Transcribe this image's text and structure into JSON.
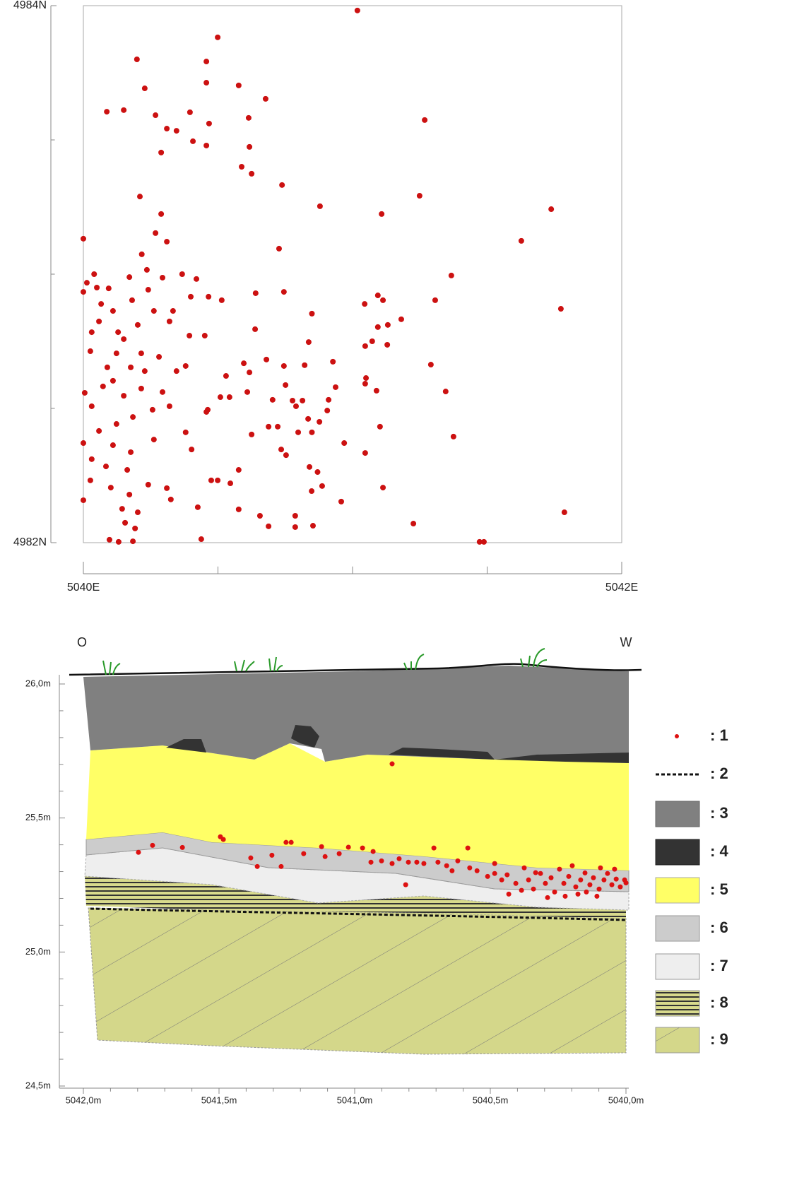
{
  "chart_data": [
    {
      "type": "scatter",
      "color": "#cc1111",
      "xlim": [
        5040,
        5042
      ],
      "ylim": [
        4982,
        4984
      ],
      "xticks": [
        {
          "value": 5040,
          "label": "5040E"
        },
        {
          "value": 5042,
          "label": "5042E"
        }
      ],
      "minor_xticks": [
        5040.5,
        5041,
        5041.5
      ],
      "yticks": [
        {
          "value": 4982,
          "label": "4982N"
        },
        {
          "value": 4984,
          "label": "4984N"
        }
      ],
      "minor_yticks": [
        4982.5,
        4983,
        4983.5
      ],
      "x": [
        5041.018,
        5040.499,
        5040.199,
        5040.457,
        5040.228,
        5040.457,
        5040.577,
        5040.677,
        5040.087,
        5040.15,
        5040.268,
        5040.396,
        5040.614,
        5041.268,
        5040.467,
        5040.31,
        5040.346,
        5040.407,
        5040.457,
        5040.289,
        5040.617,
        5040.588,
        5040.625,
        5040.738,
        5040.21,
        5041.249,
        5040.879,
        5041.738,
        5041.108,
        5040.289,
        5040,
        5040.268,
        5040.31,
        5041.627,
        5040.727,
        5040.217,
        5041.367,
        5041.774,
        5041.307,
        5040.745,
        5040.64,
        5041.045,
        5041.094,
        5041.113,
        5041.181,
        5040.849,
        5041.094,
        5041.131,
        5040.638,
        5041.047,
        5041.073,
        5041.129,
        5040.837,
        5040.927,
        5041.291,
        5040.822,
        5040.745,
        5040.68,
        5040.596,
        5040.617,
        5041.05,
        5041.047,
        5040.937,
        5041.089,
        5041.346,
        5040.609,
        5040.751,
        5040.703,
        5040.777,
        5040.814,
        5040.911,
        5040.79,
        5040.906,
        5040.835,
        5040.877,
        5040.688,
        5040.722,
        5041.102,
        5041.375,
        5040.625,
        5040.798,
        5040.849,
        5040.969,
        5040.735,
        5041.047,
        5040.753,
        5040.84,
        5040.87,
        5040.577,
        5040.499,
        5040.475,
        5040.546,
        5040.848,
        5040.887,
        5041.113,
        5040.958,
        5040.577,
        5040.656,
        5040.688,
        5040.787,
        5040.787,
        5040.853,
        5041.226,
        5041.787,
        5041.472,
        5041.488,
        5040.438,
        5040.097,
        5040.131,
        5040.184,
        5040,
        5040.013,
        5040.04,
        5040.05,
        5040.094,
        5040.066,
        5040.031,
        5040.026,
        5040.058,
        5040.11,
        5040.171,
        5040.236,
        5040.294,
        5040.367,
        5040.42,
        5040.465,
        5040.514,
        5040.399,
        5040.262,
        5040.32,
        5040.202,
        5040.15,
        5040.123,
        5040.215,
        5040.281,
        5040.394,
        5040.451,
        5040.38,
        5040.089,
        5040.176,
        5040.228,
        5040.11,
        5040.073,
        5040.005,
        5040.031,
        5040.15,
        5040.215,
        5040.294,
        5040.32,
        5040.257,
        5040.184,
        5040.123,
        5040.058,
        5040,
        5040.11,
        5040.176,
        5040.262,
        5040.38,
        5040.462,
        5040.402,
        5040.031,
        5040.084,
        5040.163,
        5040.026,
        5040.102,
        5040.171,
        5040,
        5040.144,
        5040.202,
        5040.155,
        5040.192,
        5040.241,
        5040.31,
        5040.325,
        5040.425,
        5040.53,
        5040.509,
        5040.543,
        5040.457,
        5040.333,
        5040.241,
        5040.181,
        5040.129,
        5040.346
      ],
      "y": [
        4983.982,
        4983.882,
        4983.8,
        4983.792,
        4983.692,
        4983.713,
        4983.703,
        4983.653,
        4983.605,
        4983.611,
        4983.592,
        4983.603,
        4983.582,
        4983.574,
        4983.561,
        4983.542,
        4983.534,
        4983.495,
        4983.479,
        4983.453,
        4983.474,
        4983.4,
        4983.374,
        4983.332,
        4983.289,
        4983.292,
        4983.253,
        4983.242,
        4983.224,
        4983.224,
        4983.132,
        4983.153,
        4983.121,
        4983.124,
        4983.095,
        4983.074,
        4982.995,
        4982.871,
        4982.903,
        4982.934,
        4982.929,
        4982.889,
        4982.921,
        4982.903,
        4982.832,
        4982.853,
        4982.803,
        4982.811,
        4982.795,
        4982.732,
        4982.75,
        4982.737,
        4982.747,
        4982.674,
        4982.663,
        4982.661,
        4982.658,
        4982.682,
        4982.668,
        4982.634,
        4982.613,
        4982.592,
        4982.579,
        4982.566,
        4982.563,
        4982.561,
        4982.587,
        4982.532,
        4982.529,
        4982.529,
        4982.532,
        4982.508,
        4982.492,
        4982.461,
        4982.45,
        4982.432,
        4982.432,
        4982.432,
        4982.395,
        4982.403,
        4982.411,
        4982.411,
        4982.371,
        4982.347,
        4982.334,
        4982.326,
        4982.282,
        4982.263,
        4982.271,
        4982.232,
        4982.232,
        4982.221,
        4982.192,
        4982.211,
        4982.205,
        4982.153,
        4982.124,
        4982.1,
        4982.061,
        4982.1,
        4982.058,
        4982.063,
        4982.071,
        4982.113,
        4982.003,
        4982.003,
        4982.013,
        4982.011,
        4982.003,
        4982.005,
        4982.934,
        4982.968,
        4983,
        4982.95,
        4982.947,
        4982.889,
        4982.784,
        4982.713,
        4982.824,
        4982.863,
        4982.989,
        4983.016,
        4982.987,
        4983,
        4982.982,
        4982.916,
        4982.903,
        4982.916,
        4982.863,
        4982.824,
        4982.811,
        4982.758,
        4982.705,
        4982.705,
        4982.692,
        4982.771,
        4982.771,
        4982.658,
        4982.653,
        4982.653,
        4982.639,
        4982.603,
        4982.582,
        4982.558,
        4982.508,
        4982.547,
        4982.574,
        4982.561,
        4982.508,
        4982.495,
        4982.468,
        4982.442,
        4982.416,
        4982.371,
        4982.363,
        4982.337,
        4982.384,
        4982.411,
        4982.495,
        4982.347,
        4982.311,
        4982.284,
        4982.271,
        4982.232,
        4982.205,
        4982.179,
        4982.158,
        4982.126,
        4982.113,
        4982.074,
        4982.053,
        4982.216,
        4982.203,
        4982.161,
        4982.132,
        4982.621,
        4982.542,
        4982.542,
        4982.487,
        4982.863,
        4982.942,
        4982.903,
        4982.784,
        4982.639
      ]
    },
    {
      "type": "scatter",
      "color": "#dd1111",
      "left_label": "O",
      "right_label": "W",
      "xlim": [
        5042,
        5040
      ],
      "ylim": [
        24.5,
        26.0
      ],
      "xticks": [
        {
          "value": 5042,
          "label": "5042,0m"
        },
        {
          "value": 5041.5,
          "label": "5041,5m"
        },
        {
          "value": 5041,
          "label": "5041,0m"
        },
        {
          "value": 5040.5,
          "label": "5040,5m"
        },
        {
          "value": 5040,
          "label": "5040,0m"
        }
      ],
      "minor_xticks": [
        5041.9,
        5041.8,
        5041.7,
        5041.6,
        5041.4,
        5041.3,
        5041.2,
        5041.1,
        5040.9,
        5040.8,
        5040.7,
        5040.6,
        5040.4,
        5040.3,
        5040.2,
        5040.1
      ],
      "yticks": [
        {
          "value": 26,
          "label": "26,0m"
        },
        {
          "value": 25.5,
          "label": "25,5m"
        },
        {
          "value": 25,
          "label": "25,0m"
        },
        {
          "value": 24.5,
          "label": "24,5m"
        }
      ],
      "minor_yticks": [
        25.9,
        25.8,
        25.7,
        25.6,
        25.4,
        25.3,
        25.2,
        25.1,
        24.9,
        24.8,
        24.7,
        24.6
      ],
      "legend": [
        ": 1",
        ": 2",
        ": 3",
        ": 4",
        ": 5",
        ": 6",
        ": 7",
        ": 8",
        ": 9"
      ],
      "x": [
        5040.862,
        5041.495,
        5041.484,
        5041.797,
        5041.745,
        5041.635,
        5041.253,
        5041.234,
        5041.383,
        5041.359,
        5041.305,
        5041.271,
        5041.188,
        5041.122,
        5041.109,
        5041.057,
        5041.023,
        5040.971,
        5040.932,
        5040.94,
        5040.901,
        5040.862,
        5040.836,
        5040.802,
        5040.812,
        5040.771,
        5040.745,
        5040.708,
        5040.693,
        5040.661,
        5040.641,
        5040.583,
        5040.576,
        5040.549,
        5040.51,
        5040.484,
        5040.458,
        5040.438,
        5040.432,
        5040.406,
        5040.385,
        5040.359,
        5040.341,
        5040.315,
        5040.297,
        5040.276,
        5040.263,
        5040.245,
        5040.229,
        5040.211,
        5040.198,
        5040.185,
        5040.167,
        5040.151,
        5040.133,
        5040.12,
        5040.099,
        5040.081,
        5040.068,
        5040.052,
        5040.036,
        5040.021,
        5040.005,
        5040,
        5040.333,
        5040.375,
        5040.484,
        5040.62,
        5040.177,
        5040.146,
        5040.107,
        5040.224,
        5040.289,
        5040.042,
        5040.094
      ],
      "y": [
        25.702,
        25.43,
        25.42,
        25.372,
        25.398,
        25.39,
        25.409,
        25.409,
        25.351,
        25.319,
        25.361,
        25.319,
        25.367,
        25.393,
        25.356,
        25.367,
        25.391,
        25.388,
        25.375,
        25.335,
        25.34,
        25.33,
        25.348,
        25.335,
        25.251,
        25.335,
        25.33,
        25.388,
        25.335,
        25.322,
        25.303,
        25.388,
        25.314,
        25.303,
        25.282,
        25.293,
        25.269,
        25.288,
        25.216,
        25.256,
        25.23,
        25.269,
        25.235,
        25.293,
        25.256,
        25.277,
        25.224,
        25.309,
        25.256,
        25.282,
        25.322,
        25.243,
        25.269,
        25.295,
        25.251,
        25.277,
        25.235,
        25.269,
        25.293,
        25.251,
        25.272,
        25.243,
        25.269,
        25.258,
        25.296,
        25.314,
        25.33,
        25.34,
        25.216,
        25.224,
        25.208,
        25.208,
        25.203,
        25.309,
        25.314
      ]
    }
  ]
}
